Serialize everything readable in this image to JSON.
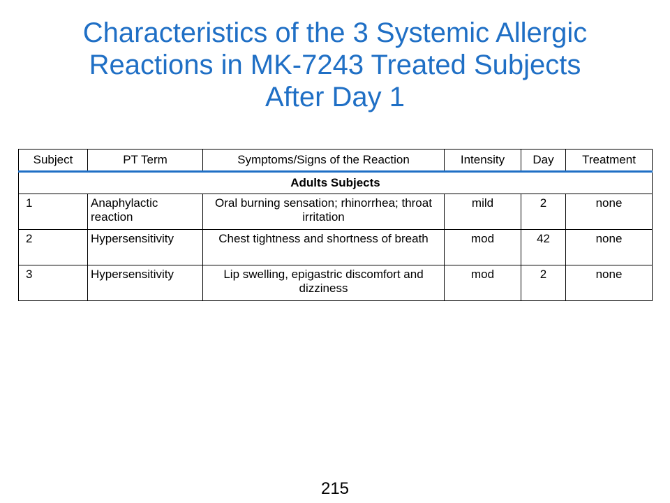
{
  "slide": {
    "title_lines": [
      "Characteristics of the 3 Systemic Allergic",
      "Reactions in MK-7243 Treated Subjects",
      "After Day 1"
    ],
    "title_color": "#1f6fc5",
    "page_number": "215"
  },
  "table": {
    "headers": [
      "Subject",
      "PT Term",
      "Symptoms/Signs  of the Reaction",
      "Intensity",
      "Day",
      "Treatment"
    ],
    "section_label": "Adults Subjects",
    "rows": [
      [
        "1",
        "Anaphylactic reaction",
        "Oral burning  sensation; rhinorrhea; throat irritation",
        "mild",
        "2",
        "none"
      ],
      [
        "2",
        "Hypersensitivity",
        "Chest tightness and shortness of breath",
        "mod",
        "42",
        "none"
      ],
      [
        "3",
        "Hypersensitivity",
        "Lip swelling,  epigastric discomfort and dizziness",
        "mod",
        "2",
        "none"
      ]
    ]
  }
}
